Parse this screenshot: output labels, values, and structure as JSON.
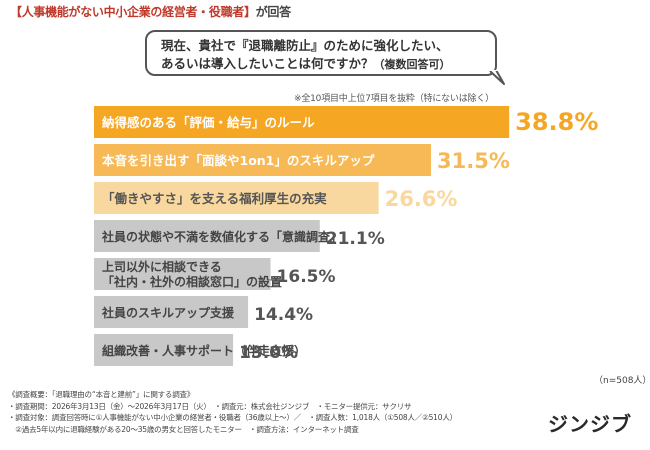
{
  "header": {
    "highlight": "【人事機能がない中小企業の経営者・役職者】",
    "suffix": "が回答"
  },
  "question": {
    "line1": "現在、貴社で『退職離防止』のために強化したい、",
    "line2": "あるいは導入したいことは何ですか？",
    "note": "（複数回答可）"
  },
  "chart_note": "※全10項目中上位7項目を抜粋（特にないは除く）",
  "sample_size": "（n=508人）",
  "colors": {
    "rank1_bar": "#f5a623",
    "rank2_bar": "#f7b955",
    "rank3_bar": "#f9d8a0",
    "gray_bar": "#c8c8c8",
    "rank1_value": "#f5a623",
    "rank2_value": "#f7b955",
    "rank3_value": "#f9d8a0",
    "gray_value": "#555555"
  },
  "chart_data": {
    "type": "bar",
    "orientation": "horizontal",
    "unit": "%",
    "categories": [
      "納得感のある「評価・給与」のルール",
      "本音を引き出す「面談や1on1」のスキルアップ",
      "「働きやすさ」を支える福利厚生の充実",
      "社員の状態や不満を数値化する「意識調査」",
      "上司以外に相談できる「社内・社外の相談窓口」の設置",
      "社員のスキルアップ支援",
      "組織改善・人事サポート（伴走支援）"
    ],
    "label_lines": [
      [
        "納得感のある「評価・給与」のルール"
      ],
      [
        "本音を引き出す「面談や1on1」のスキルアップ"
      ],
      [
        "「働きやすさ」を支える福利厚生の充実"
      ],
      [
        "社員の状態や不満を数値化する「意識調査」"
      ],
      [
        "上司以外に相談できる",
        "「社内・社外の相談窓口」の設置"
      ],
      [
        "社員のスキルアップ支援"
      ],
      [
        "組織改善・人事サポート（伴走支援）"
      ]
    ],
    "values": [
      38.8,
      31.5,
      26.6,
      21.1,
      16.5,
      14.4,
      13.0
    ],
    "value_labels": [
      "38.8%",
      "31.5%",
      "26.6%",
      "21.1%",
      "16.5%",
      "14.4%",
      "13.0%"
    ]
  },
  "footer": {
    "line1": "《調査概要：「退職理由の“本音と建前”」に関する調査》",
    "line2": "・調査期間：2026年3月13日（金）〜2026年3月17日（火）　・調査元：株式会社ジンジブ　・モニター提供元：サクリサ",
    "line3": "・調査対象：調査回答時に①人事機能がない中小企業の経営者・役職者（36歳以上〜）／　・調査人数：1,018人（①508人／②510人）",
    "line4": "　②過去5年以内に退職経験がある20〜35歳の男女と回答したモニター　・調査方法：インターネット調査"
  },
  "brand": {
    "name": "ジンジブ"
  }
}
